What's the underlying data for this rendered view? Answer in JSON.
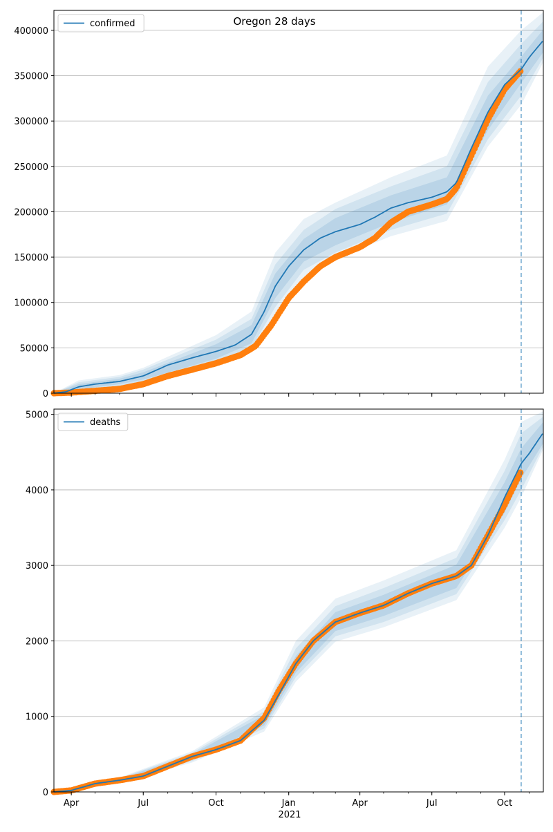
{
  "title": "Oregon 28 days",
  "colors": {
    "model_line": "#1f77b4",
    "observed": "#ff7f0e",
    "band": "#1f77b4",
    "grid": "#b0b0b0",
    "forecast_marker": "#1f77b4"
  },
  "x_axis": {
    "start": "2020-03-10",
    "end": "2021-11-19",
    "ticks": [
      {
        "date": "2020-04-01",
        "label": "Apr"
      },
      {
        "date": "2020-07-01",
        "label": "Jul"
      },
      {
        "date": "2020-10-01",
        "label": "Oct"
      },
      {
        "date": "2021-01-01",
        "label": "Jan"
      },
      {
        "date": "2021-04-01",
        "label": "Apr"
      },
      {
        "date": "2021-07-01",
        "label": "Jul"
      },
      {
        "date": "2021-10-01",
        "label": "Oct"
      }
    ],
    "year_label": "2021",
    "forecast_start": "2021-10-22"
  },
  "chart_data": [
    {
      "type": "line",
      "title": "Oregon 28 days",
      "legend": "top-left",
      "grid": "horizontal",
      "ylim": [
        0,
        422000
      ],
      "yticks": [
        0,
        50000,
        100000,
        150000,
        200000,
        250000,
        300000,
        350000,
        400000
      ],
      "series": [
        {
          "name": "confirmed",
          "kind": "model",
          "points": [
            [
              "2020-03-10",
              0
            ],
            [
              "2020-03-25",
              1500
            ],
            [
              "2020-04-10",
              7000
            ],
            [
              "2020-05-01",
              10000
            ],
            [
              "2020-06-01",
              13000
            ],
            [
              "2020-07-01",
              19000
            ],
            [
              "2020-08-01",
              31000
            ],
            [
              "2020-09-01",
              39000
            ],
            [
              "2020-10-01",
              46000
            ],
            [
              "2020-10-25",
              53000
            ],
            [
              "2020-11-15",
              65000
            ],
            [
              "2020-12-01",
              90000
            ],
            [
              "2020-12-15",
              118000
            ],
            [
              "2021-01-01",
              140000
            ],
            [
              "2021-01-20",
              158000
            ],
            [
              "2021-02-10",
              171000
            ],
            [
              "2021-03-01",
              178000
            ],
            [
              "2021-04-01",
              186000
            ],
            [
              "2021-04-20",
              194000
            ],
            [
              "2021-05-10",
              204000
            ],
            [
              "2021-06-01",
              210000
            ],
            [
              "2021-07-01",
              216000
            ],
            [
              "2021-07-20",
              222000
            ],
            [
              "2021-08-01",
              232000
            ],
            [
              "2021-08-20",
              270000
            ],
            [
              "2021-09-10",
              310000
            ],
            [
              "2021-10-01",
              340000
            ],
            [
              "2021-10-22",
              357000
            ],
            [
              "2021-11-01",
              370000
            ],
            [
              "2021-11-19",
              389000
            ]
          ],
          "bands": [
            [
              [
                "2020-03-10",
                0,
                0
              ],
              [
                "2020-04-10",
                4000,
                10000
              ],
              [
                "2020-06-01",
                10000,
                16000
              ],
              [
                "2020-07-01",
                15000,
                23000
              ],
              [
                "2020-10-01",
                38000,
                54000
              ],
              [
                "2020-11-15",
                55000,
                75000
              ],
              [
                "2020-12-15",
                105000,
                132000
              ],
              [
                "2021-01-20",
                145000,
                170000
              ],
              [
                "2021-03-01",
                163000,
                193000
              ],
              [
                "2021-05-10",
                188000,
                218000
              ],
              [
                "2021-07-20",
                208000,
                238000
              ],
              [
                "2021-09-10",
                290000,
                328000
              ],
              [
                "2021-10-22",
                342000,
                371000
              ],
              [
                "2021-11-19",
                376000,
                401000
              ]
            ],
            [
              [
                "2020-03-10",
                0,
                0
              ],
              [
                "2020-04-10",
                2000,
                12000
              ],
              [
                "2020-06-01",
                8000,
                18000
              ],
              [
                "2020-07-01",
                12000,
                26000
              ],
              [
                "2020-10-01",
                34000,
                59000
              ],
              [
                "2020-11-15",
                50000,
                82000
              ],
              [
                "2020-12-15",
                95000,
                142000
              ],
              [
                "2021-01-20",
                136000,
                180000
              ],
              [
                "2021-03-01",
                155000,
                203000
              ],
              [
                "2021-05-10",
                180000,
                228000
              ],
              [
                "2021-07-20",
                198000,
                250000
              ],
              [
                "2021-09-10",
                280000,
                343000
              ],
              [
                "2021-10-22",
                328000,
                385000
              ],
              [
                "2021-11-19",
                370000,
                410000
              ]
            ],
            [
              [
                "2020-03-10",
                0,
                0
              ],
              [
                "2020-04-10",
                1000,
                14000
              ],
              [
                "2020-06-01",
                6000,
                20000
              ],
              [
                "2020-07-01",
                10000,
                28000
              ],
              [
                "2020-10-01",
                30000,
                64000
              ],
              [
                "2020-11-15",
                46000,
                90000
              ],
              [
                "2020-12-15",
                88000,
                155000
              ],
              [
                "2021-01-20",
                128000,
                192000
              ],
              [
                "2021-03-01",
                148000,
                210000
              ],
              [
                "2021-05-10",
                173000,
                238000
              ],
              [
                "2021-07-20",
                190000,
                262000
              ],
              [
                "2021-09-10",
                272000,
                360000
              ],
              [
                "2021-10-22",
                318000,
                400000
              ],
              [
                "2021-11-19",
                365000,
                420000
              ]
            ]
          ]
        },
        {
          "name": "",
          "kind": "observed",
          "points": [
            [
              "2020-03-10",
              0
            ],
            [
              "2020-04-01",
              700
            ],
            [
              "2020-05-01",
              2600
            ],
            [
              "2020-06-01",
              4700
            ],
            [
              "2020-07-01",
              10000
            ],
            [
              "2020-08-01",
              19000
            ],
            [
              "2020-09-01",
              26000
            ],
            [
              "2020-10-01",
              33000
            ],
            [
              "2020-11-01",
              42000
            ],
            [
              "2020-11-20",
              52000
            ],
            [
              "2020-12-10",
              75000
            ],
            [
              "2021-01-01",
              105000
            ],
            [
              "2021-01-20",
              123000
            ],
            [
              "2021-02-10",
              140000
            ],
            [
              "2021-03-01",
              150000
            ],
            [
              "2021-04-01",
              161000
            ],
            [
              "2021-04-20",
              171000
            ],
            [
              "2021-05-10",
              188000
            ],
            [
              "2021-06-01",
              200000
            ],
            [
              "2021-07-01",
              208000
            ],
            [
              "2021-07-20",
              214000
            ],
            [
              "2021-08-01",
              226000
            ],
            [
              "2021-08-20",
              262000
            ],
            [
              "2021-09-10",
              302000
            ],
            [
              "2021-10-01",
              335000
            ],
            [
              "2021-10-22",
              356000
            ]
          ]
        }
      ]
    },
    {
      "type": "line",
      "legend": "top-left",
      "grid": "horizontal",
      "ylim": [
        0,
        5070
      ],
      "yticks": [
        0,
        1000,
        2000,
        3000,
        4000,
        5000
      ],
      "series": [
        {
          "name": "deaths",
          "kind": "model",
          "points": [
            [
              "2020-03-10",
              0
            ],
            [
              "2020-04-01",
              20
            ],
            [
              "2020-05-01",
              110
            ],
            [
              "2020-06-01",
              155
            ],
            [
              "2020-07-01",
              210
            ],
            [
              "2020-08-01",
              340
            ],
            [
              "2020-09-01",
              470
            ],
            [
              "2020-10-01",
              560
            ],
            [
              "2020-11-01",
              680
            ],
            [
              "2020-12-01",
              950
            ],
            [
              "2020-12-20",
              1300
            ],
            [
              "2021-01-10",
              1700
            ],
            [
              "2021-02-01",
              2000
            ],
            [
              "2021-03-01",
              2250
            ],
            [
              "2021-04-01",
              2370
            ],
            [
              "2021-05-01",
              2470
            ],
            [
              "2021-06-01",
              2630
            ],
            [
              "2021-07-01",
              2760
            ],
            [
              "2021-08-01",
              2860
            ],
            [
              "2021-08-20",
              3000
            ],
            [
              "2021-09-10",
              3400
            ],
            [
              "2021-10-01",
              3900
            ],
            [
              "2021-10-22",
              4350
            ],
            [
              "2021-11-01",
              4480
            ],
            [
              "2021-11-19",
              4760
            ]
          ],
          "bands": [
            [
              [
                "2020-03-10",
                0,
                0
              ],
              [
                "2020-06-01",
                140,
                170
              ],
              [
                "2020-09-01",
                430,
                500
              ],
              [
                "2020-12-01",
                880,
                1020
              ],
              [
                "2021-01-10",
                1580,
                1800
              ],
              [
                "2021-03-01",
                2130,
                2380
              ],
              [
                "2021-05-01",
                2330,
                2610
              ],
              [
                "2021-08-01",
                2700,
                3010
              ],
              [
                "2021-10-01",
                3700,
                4100
              ],
              [
                "2021-10-22",
                4150,
                4550
              ],
              [
                "2021-11-19",
                4620,
                4900
              ]
            ],
            [
              [
                "2020-03-10",
                0,
                0
              ],
              [
                "2020-06-01",
                130,
                180
              ],
              [
                "2020-09-01",
                410,
                520
              ],
              [
                "2020-12-01",
                840,
                1070
              ],
              [
                "2021-01-10",
                1520,
                1900
              ],
              [
                "2021-03-01",
                2060,
                2460
              ],
              [
                "2021-05-01",
                2250,
                2700
              ],
              [
                "2021-08-01",
                2620,
                3100
              ],
              [
                "2021-10-01",
                3600,
                4250
              ],
              [
                "2021-10-22",
                4000,
                4750
              ],
              [
                "2021-11-19",
                4580,
                4970
              ]
            ],
            [
              [
                "2020-03-10",
                0,
                0
              ],
              [
                "2020-06-01",
                120,
                190
              ],
              [
                "2020-09-01",
                390,
                540
              ],
              [
                "2020-12-01",
                800,
                1120
              ],
              [
                "2021-01-10",
                1460,
                2000
              ],
              [
                "2021-03-01",
                1990,
                2560
              ],
              [
                "2021-05-01",
                2180,
                2800
              ],
              [
                "2021-08-01",
                2540,
                3200
              ],
              [
                "2021-10-01",
                3500,
                4400
              ],
              [
                "2021-10-22",
                3900,
                4900
              ],
              [
                "2021-11-19",
                4540,
                5040
              ]
            ]
          ]
        },
        {
          "name": "",
          "kind": "observed",
          "points": [
            [
              "2020-03-10",
              0
            ],
            [
              "2020-04-01",
              20
            ],
            [
              "2020-05-01",
              110
            ],
            [
              "2020-06-01",
              155
            ],
            [
              "2020-07-01",
              210
            ],
            [
              "2020-08-01",
              340
            ],
            [
              "2020-09-01",
              470
            ],
            [
              "2020-10-01",
              560
            ],
            [
              "2020-11-01",
              680
            ],
            [
              "2020-12-01",
              980
            ],
            [
              "2020-12-20",
              1350
            ],
            [
              "2021-01-10",
              1700
            ],
            [
              "2021-02-01",
              2000
            ],
            [
              "2021-03-01",
              2250
            ],
            [
              "2021-04-01",
              2370
            ],
            [
              "2021-05-01",
              2470
            ],
            [
              "2021-06-01",
              2630
            ],
            [
              "2021-07-01",
              2760
            ],
            [
              "2021-08-01",
              2860
            ],
            [
              "2021-08-20",
              3000
            ],
            [
              "2021-09-10",
              3400
            ],
            [
              "2021-10-01",
              3800
            ],
            [
              "2021-10-22",
              4250
            ]
          ]
        }
      ]
    }
  ]
}
